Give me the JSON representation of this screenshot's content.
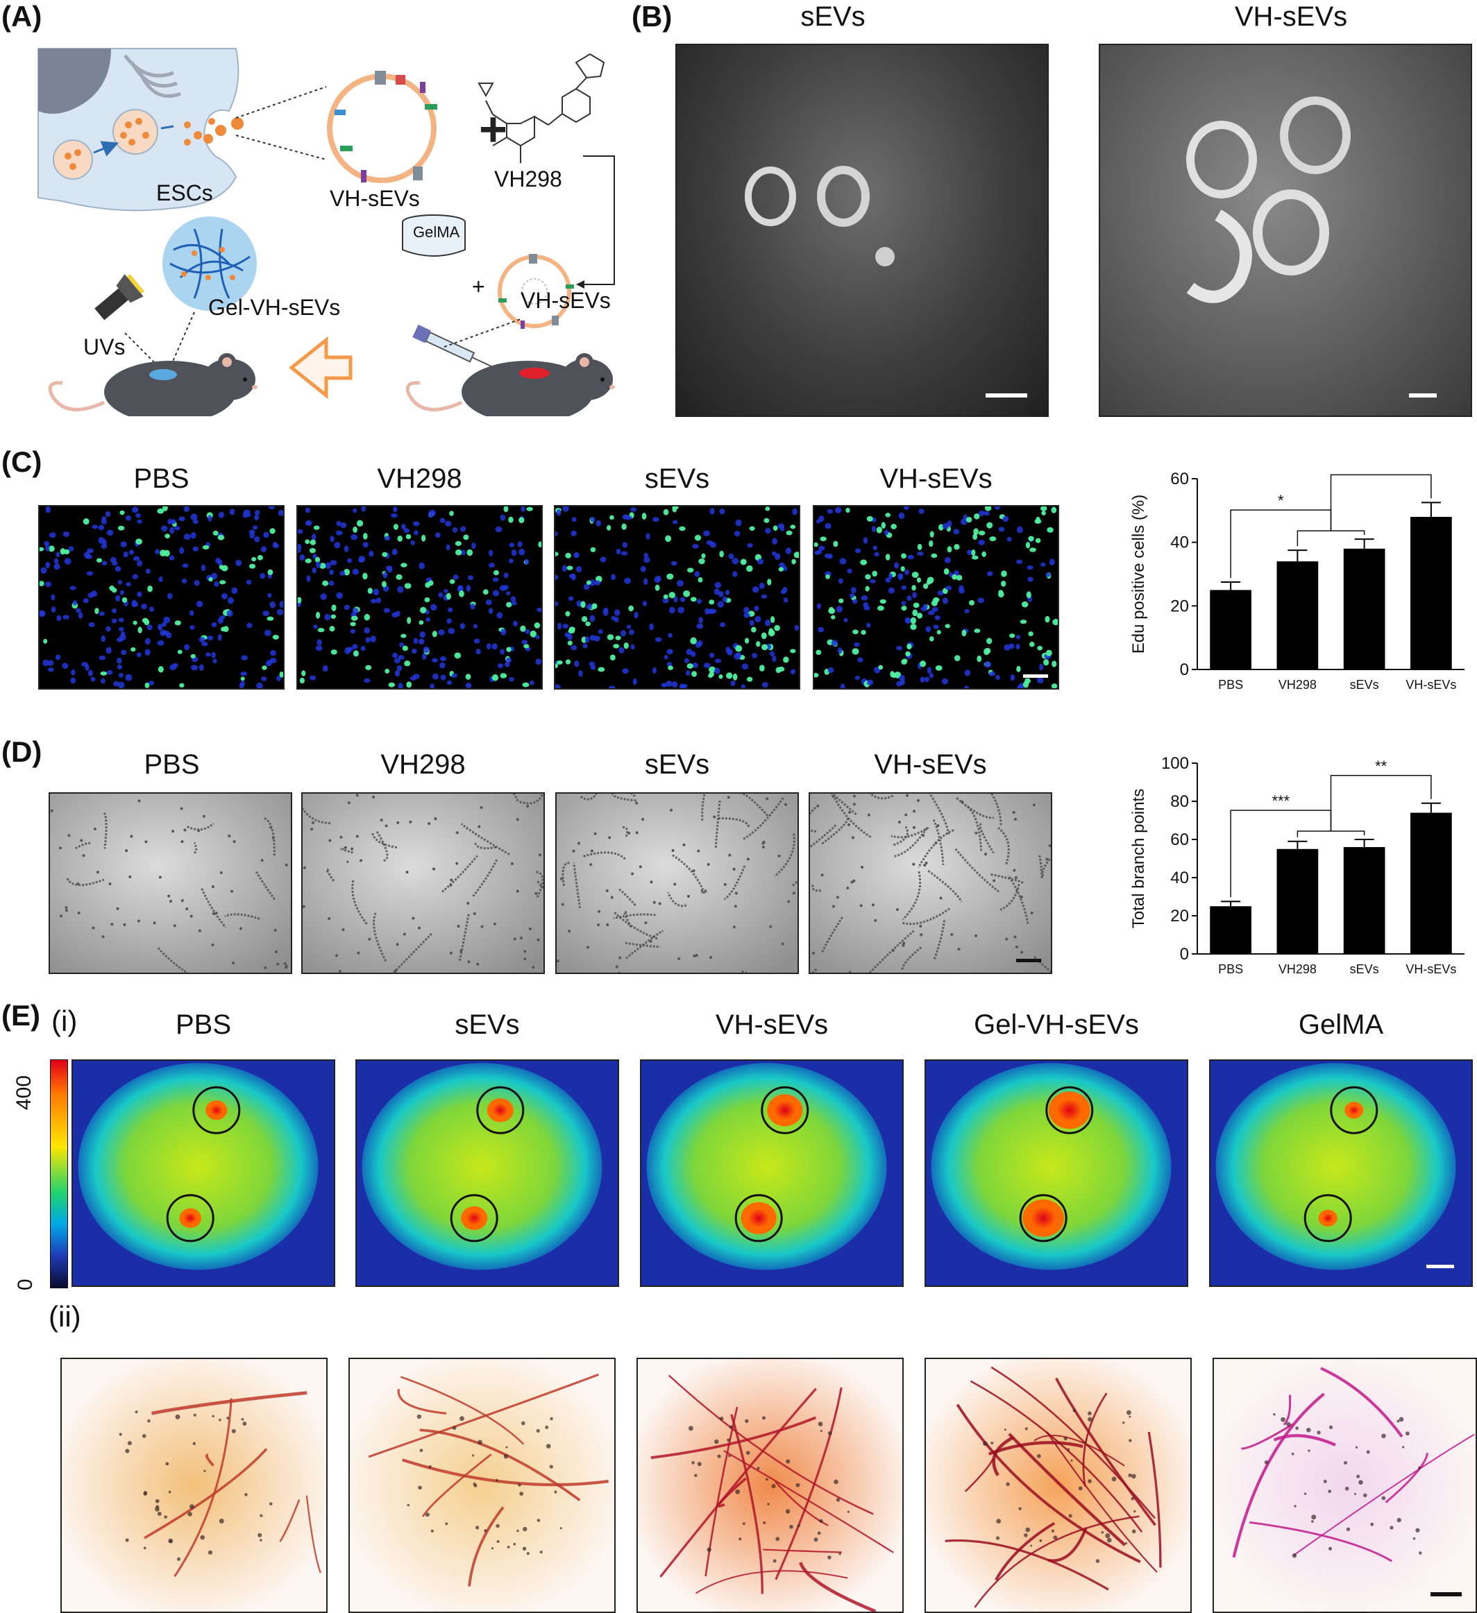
{
  "panel_labels": {
    "A": "(A)",
    "B": "(B)",
    "C": "(C)",
    "D": "(D)",
    "E": "(E)",
    "Ei": "(i)",
    "Eii": "(ii)"
  },
  "panel_a": {
    "escs": "ESCs",
    "vh_sevs": "VH-sEVs",
    "vh298": "VH298",
    "plus": "+",
    "gelma": "GelMA",
    "plus2": "+",
    "vh_sevs2": "VH-sEVs",
    "gel_vh_sevs": "Gel-VH-sEVs",
    "uvs": "UVs"
  },
  "panel_b": {
    "titles": [
      "sEVs",
      "VH-sEVs"
    ]
  },
  "panel_c": {
    "titles": [
      "PBS",
      "VH298",
      "sEVs",
      "VH-sEVs"
    ],
    "chart_data": {
      "type": "bar",
      "categories": [
        "PBS",
        "VH298",
        "sEVs",
        "VH-sEVs"
      ],
      "values": [
        25,
        34,
        38,
        48
      ],
      "errors": [
        2.5,
        3.5,
        3,
        4.5
      ],
      "ylabel": "Edu positive cells (%)",
      "ylim": [
        0,
        60
      ],
      "yticks": [
        0,
        20,
        40,
        60
      ],
      "significance": [
        "*",
        "*"
      ]
    }
  },
  "panel_d": {
    "titles": [
      "PBS",
      "VH298",
      "sEVs",
      "VH-sEVs"
    ],
    "chart_data": {
      "type": "bar",
      "categories": [
        "PBS",
        "VH298",
        "sEVs",
        "VH-sEVs"
      ],
      "values": [
        25,
        55,
        56,
        74
      ],
      "errors": [
        2.5,
        4,
        4,
        5
      ],
      "ylabel": "Total branch points",
      "ylim": [
        0,
        100
      ],
      "yticks": [
        0,
        20,
        40,
        60,
        80,
        100
      ],
      "significance": [
        "***",
        "**"
      ]
    }
  },
  "panel_e": {
    "titles": [
      "PBS",
      "sEVs",
      "VH-sEVs",
      "Gel-VH-sEVs",
      "GelMA"
    ],
    "colorbar_max": "400",
    "colorbar_min": "0"
  }
}
